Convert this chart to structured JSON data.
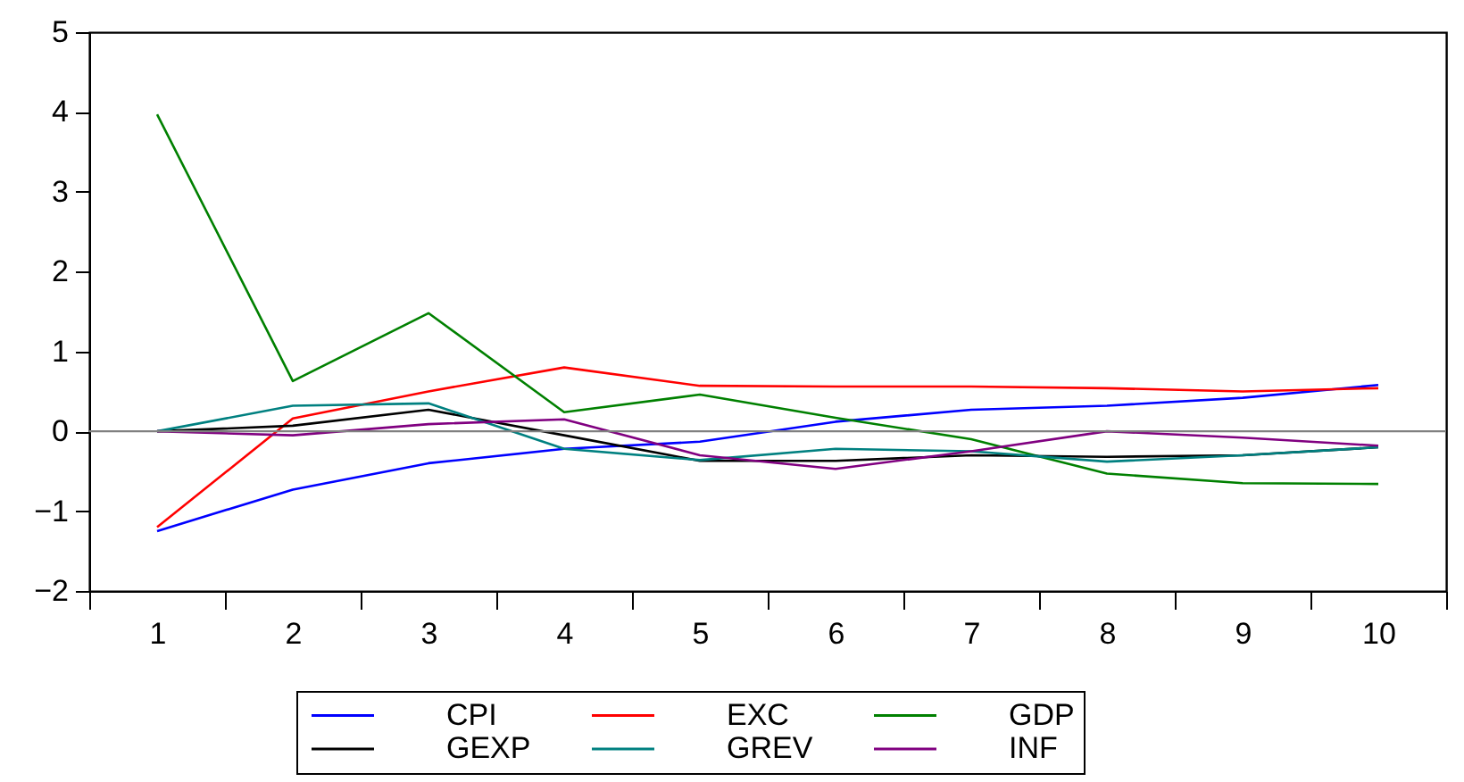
{
  "chart_data": {
    "type": "line",
    "categories": [
      "1",
      "2",
      "3",
      "4",
      "5",
      "6",
      "7",
      "8",
      "9",
      "10"
    ],
    "series": [
      {
        "name": "CPI",
        "color": "#0000ff",
        "values": [
          -1.25,
          -0.73,
          -0.4,
          -0.22,
          -0.13,
          0.12,
          0.27,
          0.32,
          0.42,
          0.58
        ]
      },
      {
        "name": "EXC",
        "color": "#ff0000",
        "values": [
          -1.2,
          0.16,
          0.5,
          0.8,
          0.57,
          0.56,
          0.56,
          0.54,
          0.5,
          0.54
        ]
      },
      {
        "name": "GDP",
        "color": "#008000",
        "values": [
          3.97,
          0.63,
          1.48,
          0.24,
          0.46,
          0.17,
          -0.1,
          -0.53,
          -0.65,
          -0.66
        ]
      },
      {
        "name": "GEXP",
        "color": "#000000",
        "values": [
          0,
          0.07,
          0.27,
          -0.05,
          -0.37,
          -0.37,
          -0.3,
          -0.32,
          -0.3,
          -0.2
        ]
      },
      {
        "name": "GREV",
        "color": "#008080",
        "values": [
          0,
          0.32,
          0.35,
          -0.22,
          -0.36,
          -0.22,
          -0.25,
          -0.38,
          -0.3,
          -0.2
        ]
      },
      {
        "name": "INF",
        "color": "#800080",
        "values": [
          0,
          -0.05,
          0.09,
          0.15,
          -0.3,
          -0.47,
          -0.25,
          0,
          -0.08,
          -0.18
        ]
      }
    ],
    "ylim": [
      -2,
      5
    ],
    "yticks": [
      -2,
      -1,
      0,
      1,
      2,
      3,
      4,
      5
    ],
    "grid": false,
    "legend": "bottom",
    "marker": "none",
    "line_style": "solid",
    "ref_lines": [
      {
        "axis": "y",
        "value": 0,
        "color": "#808080"
      }
    ]
  }
}
